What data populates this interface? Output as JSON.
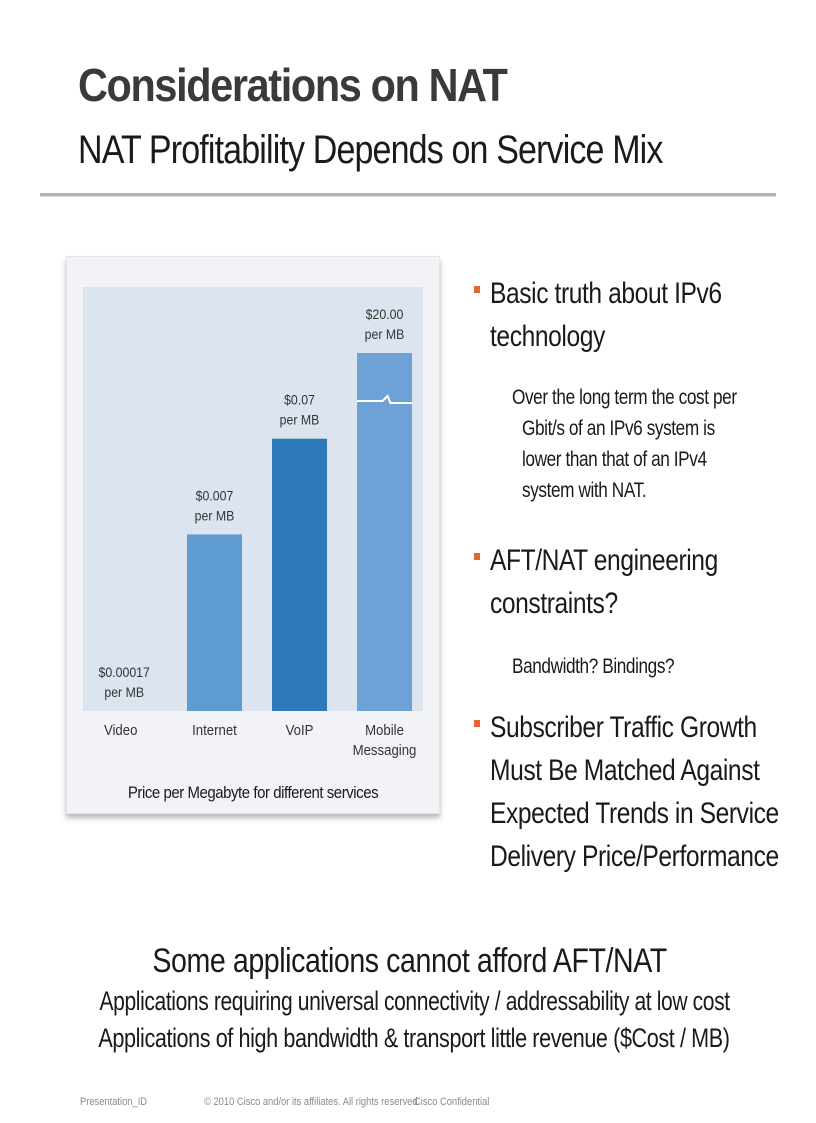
{
  "slide": {
    "title": "Considerations on NAT",
    "subtitle": "NAT Profitability Depends on Service Mix"
  },
  "chart_data": {
    "type": "bar",
    "scale": "broken-axis",
    "caption": "Price per Megabyte for different services",
    "categories": [
      "Video",
      "Internet",
      "VoIP",
      "Mobile Messaging"
    ],
    "category_lines": [
      [
        "Video"
      ],
      [
        "Internet"
      ],
      [
        "VoIP"
      ],
      [
        "Mobile",
        "Messaging"
      ]
    ],
    "values": [
      0.00017,
      0.007,
      0.07,
      20.0
    ],
    "labels": [
      [
        "$0.00017",
        "per MB"
      ],
      [
        "$0.007",
        "per MB"
      ],
      [
        "$0.07",
        "per MB"
      ],
      [
        "$20.00",
        "per MB"
      ]
    ],
    "bar_colors": [
      "#7fa8d3",
      "#5d9bd1",
      "#2e79b8",
      "#6ea2d6"
    ],
    "axis_break_on": "Mobile Messaging",
    "grid": false,
    "legend": "none",
    "colors": {
      "plot_bg": "#dce4ef",
      "card_bg": "#f1f3f6"
    }
  },
  "bullets": [
    {
      "text_lines": [
        "Basic truth about IPv6",
        "technology"
      ],
      "sub_lines": [
        "Over the long term the cost per",
        "Gbit/s of an IPv6 system is",
        "lower than that of an IPv4",
        "system with NAT."
      ]
    },
    {
      "text_lines": [
        "AFT/NAT engineering",
        "constraints?"
      ],
      "sub_lines": [
        "Bandwidth? Bindings?"
      ]
    },
    {
      "text_lines": [
        "Subscriber Traffic Growth",
        "Must Be Matched Against",
        "Expected Trends in Service",
        "Delivery Price/Performance"
      ],
      "sub_lines": []
    }
  ],
  "bottom": {
    "heading": "Some applications cannot afford AFT/NAT",
    "line1": "Applications requiring universal connectivity / addressability at low cost",
    "line2": "Applications of high bandwidth & transport little revenue ($Cost / MB)"
  },
  "footer": {
    "presentation_id": "Presentation_ID",
    "copyright": "© 2010 Cisco and/or its affiliates. All rights reserved.",
    "confidential": "Cisco Confidential"
  },
  "colors": {
    "bullet_marker": "#e8652b",
    "rule": "#b3b3b3"
  }
}
